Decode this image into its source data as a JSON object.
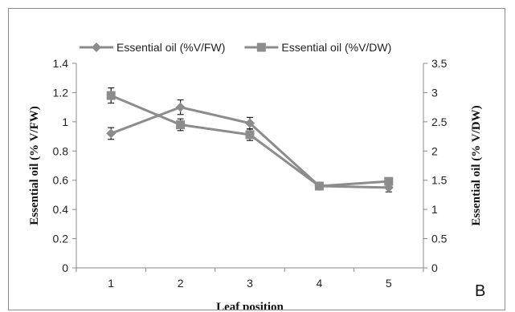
{
  "chart_data": {
    "type": "line",
    "panel_label": "B",
    "xlabel": "Leaf position",
    "ylabel_left": "Essential oil (% V/FW)",
    "ylabel_right": "Essential oil (% V/DW)",
    "categories": [
      "1",
      "2",
      "3",
      "4",
      "5"
    ],
    "ylim_left": [
      0,
      1.4
    ],
    "yticks_left": [
      0,
      0.2,
      0.4,
      0.6,
      0.8,
      1,
      1.2,
      1.4
    ],
    "ylim_right": [
      0,
      3.5
    ],
    "yticks_right": [
      0,
      0.5,
      1,
      1.5,
      2,
      2.5,
      3,
      3.5
    ],
    "grid": false,
    "legend_position": "top",
    "series": [
      {
        "name": "Essential oil (%V/FW)",
        "axis": "left",
        "marker": "diamond",
        "values": [
          0.92,
          1.1,
          0.99,
          0.56,
          0.55
        ],
        "errors": [
          0.04,
          0.05,
          0.04,
          0.02,
          0.03
        ]
      },
      {
        "name": "Essential oil (%V/DW)",
        "axis": "right",
        "marker": "square",
        "values": [
          2.95,
          2.45,
          2.28,
          1.4,
          1.48
        ],
        "errors": [
          0.13,
          0.1,
          0.1,
          0.05,
          0.05
        ]
      }
    ],
    "colors": {
      "series": "#8c8c8c",
      "axis": "#888888",
      "error": "#222222"
    }
  }
}
